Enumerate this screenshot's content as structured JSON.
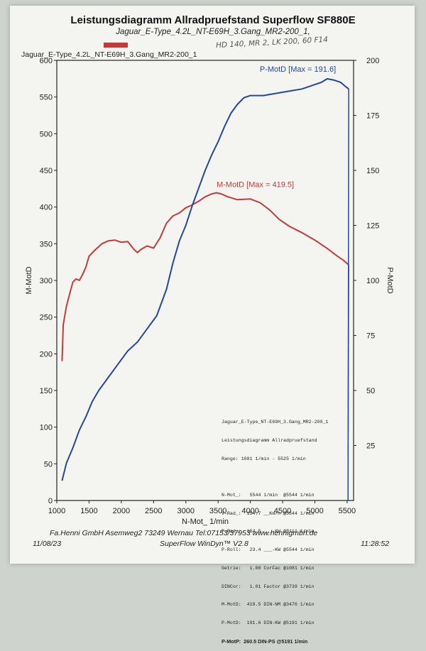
{
  "header": {
    "title": "Leistungsdiagramm Allradpruefstand Superflow SF880E",
    "subtitle": "Jaguar_E-Type_4.2L_NT-E69H_3.Gang_MR2-200_1,",
    "handwritten_note": "HD 140, MR 2, LK 200, 60 F14",
    "legend_text": "Jaguar_E-Type_4.2L_NT-E69H_3.Gang_MR2-200_1"
  },
  "colors": {
    "torque": "#c33a3a",
    "power": "#24479a"
  },
  "chart_data": {
    "type": "line",
    "xlabel": "N-Mot_ 1/min",
    "ylabel": "M-MotD",
    "y2label": "P-MotD",
    "xlim": [
      1000,
      5600
    ],
    "ylim": [
      0,
      600
    ],
    "y2lim": [
      0,
      200
    ],
    "xticks": [
      1000,
      1500,
      2000,
      2500,
      3000,
      3500,
      4000,
      4500,
      5000,
      5500
    ],
    "yticks": [
      0,
      50,
      100,
      150,
      200,
      250,
      300,
      350,
      400,
      450,
      500,
      550,
      600
    ],
    "y2ticks": [
      25,
      50,
      75,
      100,
      125,
      150,
      175,
      200
    ],
    "series": [
      {
        "name": "M-MotD",
        "axis": "left",
        "annotation": "M-MotD [Max = 419.5]",
        "x": [
          1081,
          1100,
          1150,
          1200,
          1250,
          1300,
          1350,
          1400,
          1450,
          1500,
          1600,
          1700,
          1800,
          1900,
          2000,
          2100,
          2200,
          2250,
          2300,
          2400,
          2500,
          2600,
          2700,
          2800,
          2900,
          3000,
          3100,
          3200,
          3300,
          3400,
          3476,
          3550,
          3650,
          3800,
          4000,
          4150,
          4300,
          4450,
          4600,
          4800,
          5000,
          5200,
          5350,
          5450,
          5525
        ],
        "values": [
          190,
          240,
          265,
          282,
          298,
          302,
          300,
          308,
          318,
          333,
          342,
          350,
          354,
          355,
          352,
          353,
          342,
          338,
          342,
          347,
          344,
          358,
          378,
          388,
          392,
          399,
          403,
          408,
          414,
          418,
          419.5,
          418,
          414,
          410,
          411,
          406,
          396,
          383,
          374,
          365,
          355,
          343,
          333,
          327,
          321
        ]
      },
      {
        "name": "P-MotD",
        "axis": "right",
        "annotation": "P-MotD [Max = 191.6]",
        "x": [
          1081,
          1150,
          1250,
          1350,
          1450,
          1550,
          1650,
          1800,
          1950,
          2100,
          2250,
          2400,
          2550,
          2700,
          2800,
          2900,
          3000,
          3100,
          3200,
          3300,
          3400,
          3500,
          3600,
          3700,
          3800,
          3900,
          4000,
          4200,
          4400,
          4600,
          4800,
          5000,
          5100,
          5191,
          5300,
          5400,
          5480,
          5525
        ],
        "values": [
          9,
          17,
          24,
          32,
          38,
          45,
          50,
          56,
          62,
          68,
          72,
          78,
          84,
          96,
          108,
          118,
          125,
          134,
          142,
          150,
          157,
          163,
          170,
          176,
          180,
          183,
          184,
          184,
          185,
          186,
          187,
          189,
          190,
          191.6,
          191,
          190,
          188,
          187
        ]
      }
    ]
  },
  "info": {
    "line1": "Jaguar_E-Type_NT-E69H_3.Gang_MR2-200_1",
    "line2": "Leistungsdiagramm Allradpruefstand",
    "line3": "Range: 1081 1/min - 5525 1/min",
    "rows": [
      "N-Mot_:   5544 1/min  @5544 1/min",
      "V-Rad_:  154.7 __Km/h @5544 1/min",
      "P-Rad_:  154.5 ___-KW @5111 1/min",
      "P-Roll:   23.4 ___-KW @5544 1/min",
      "Getrie:   1.08 CorFac @1081 1/min",
      "DINCor:   1.01 Factor @3739 1/min",
      "M-MotD:  419.5 DIN-NM @3476 1/min",
      "P-MotD:  191.6 DIN-KW @5191 1/min"
    ],
    "total": "P-MotP:  260.5 DIN-PS @5191 1/min"
  },
  "footer": {
    "company": "Fa.Henni GmbH   Asemweg2  73249 Wernau   Tel:07153/37953   www.hennigmbh.de",
    "date": "11/08/23",
    "software": "SuperFlow WinDyn™ V2.8",
    "time": "11:28:52"
  }
}
